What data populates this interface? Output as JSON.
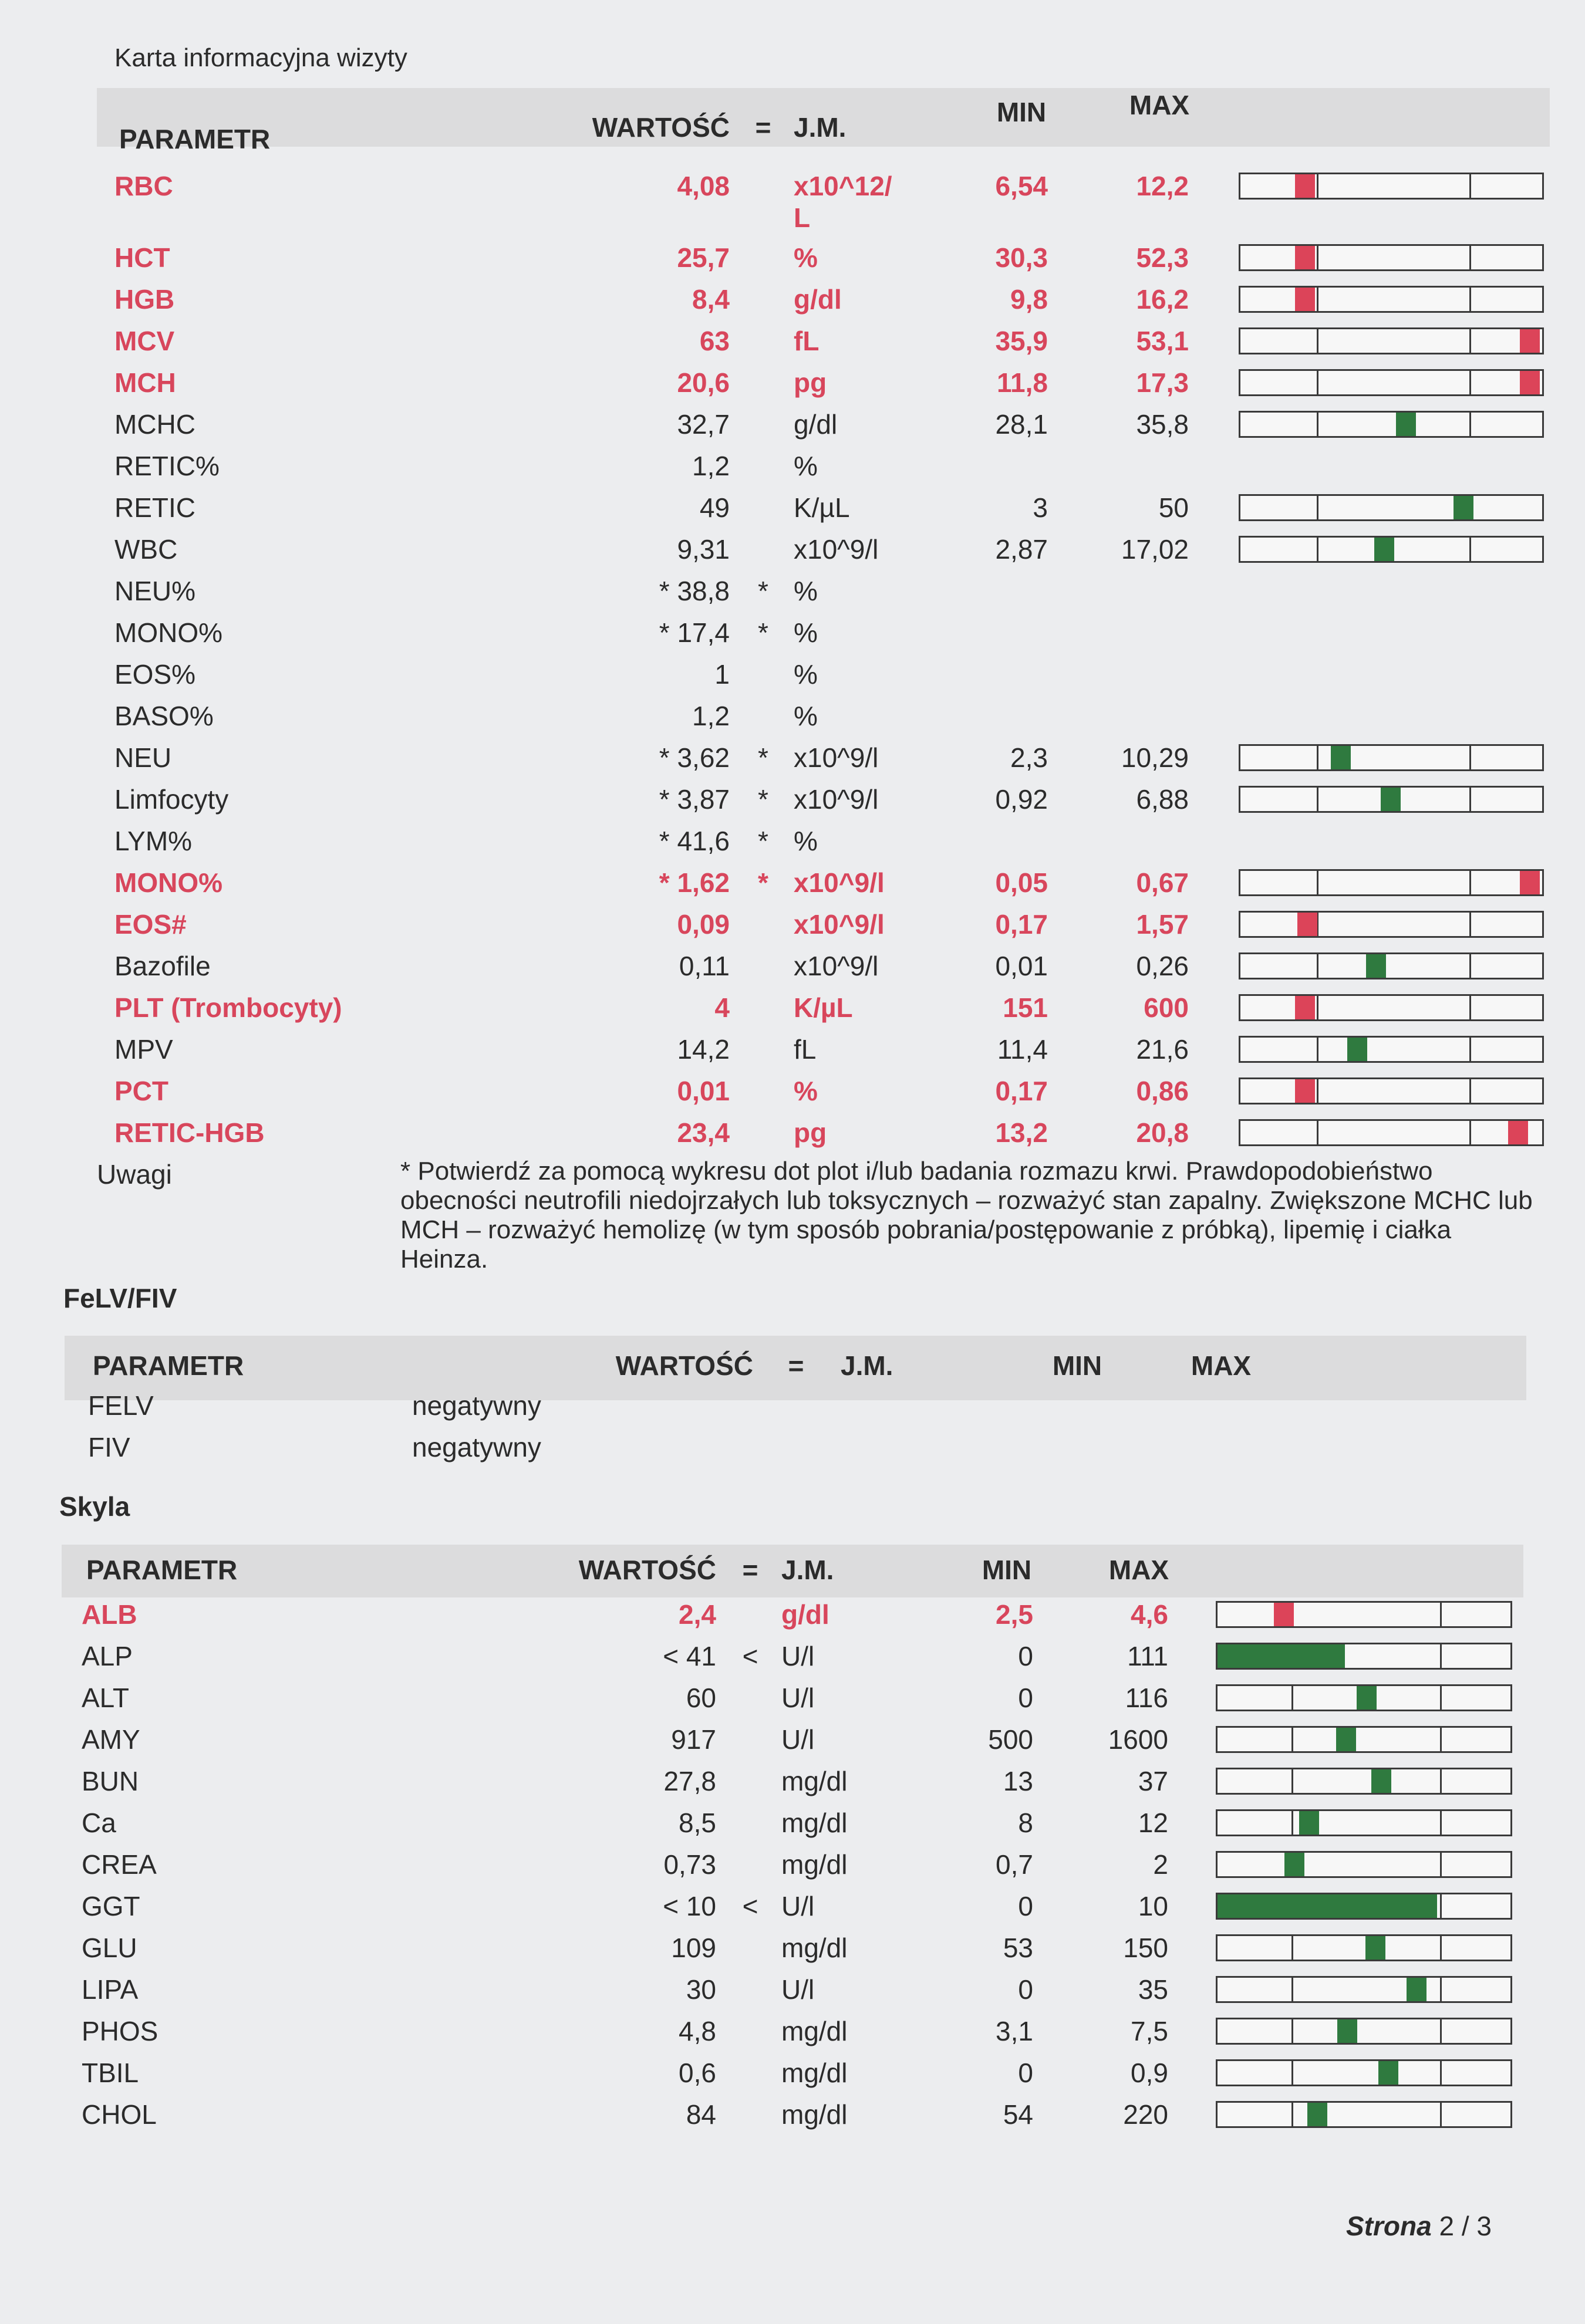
{
  "header": {
    "title": "Karta informacyjna wizyty"
  },
  "sections": [
    {
      "columns": {
        "parameter": "PARAMETR",
        "value": "WARTOŚĆ",
        "op": "=",
        "unit": "J.M.",
        "min": "MIN",
        "max": "MAX"
      },
      "rows": [
        {
          "name": "RBC",
          "value": "4,08",
          "unit": "x10^12/L",
          "min": "6,54",
          "max": "12,2",
          "color": "#d8465c"
        },
        {
          "name": "HCT",
          "value": "25,7",
          "unit": "%",
          "min": "30,3",
          "max": "52,3",
          "color": "#d8465c"
        },
        {
          "name": "HGB",
          "value": "8,4",
          "unit": "g/dl",
          "min": "9,8",
          "max": "16,2",
          "color": "#d8465c"
        },
        {
          "name": "MCV",
          "value": "63",
          "unit": "fL",
          "min": "35,9",
          "max": "53,1",
          "color": "#d8465c"
        },
        {
          "name": "MCH",
          "value": "20,6",
          "unit": "pg",
          "min": "11,8",
          "max": "17,3",
          "color": "#d8465c"
        },
        {
          "name": "MCHC",
          "value": "32,7",
          "unit": "g/dl",
          "min": "28,1",
          "max": "35,8"
        },
        {
          "name": "RETIC%",
          "value": "1,2",
          "unit": "%"
        },
        {
          "name": "RETIC",
          "value": "49",
          "unit": "K/µL",
          "min": "3",
          "max": "50"
        },
        {
          "name": "WBC",
          "value": "9,31",
          "unit": "x10^9/l",
          "min": "2,87",
          "max": "17,02"
        },
        {
          "name": "NEU%",
          "value": "* 38,8",
          "op": "*",
          "unit": "%"
        },
        {
          "name": "MONO%",
          "value": "* 17,4",
          "op": "*",
          "unit": "%"
        },
        {
          "name": "EOS%",
          "value": "1",
          "unit": "%"
        },
        {
          "name": "BASO%",
          "value": "1,2",
          "unit": "%"
        },
        {
          "name": "NEU",
          "value": "* 3,62",
          "op": "*",
          "unit": "x10^9/l",
          "min": "2,3",
          "max": "10,29"
        },
        {
          "name": "Limfocyty",
          "value": "* 3,87",
          "op": "*",
          "unit": "x10^9/l",
          "min": "0,92",
          "max": "6,88"
        },
        {
          "name": "LYM%",
          "value": "* 41,6",
          "op": "*",
          "unit": "%"
        },
        {
          "name": "MONO%",
          "value": "* 1,62",
          "op": "*",
          "unit": "x10^9/l",
          "min": "0,05",
          "max": "0,67",
          "color": "#d8465c"
        },
        {
          "name": "EOS#",
          "value": "0,09",
          "unit": "x10^9/l",
          "min": "0,17",
          "max": "1,57",
          "color": "#d8465c"
        },
        {
          "name": "Bazofile",
          "value": "0,11",
          "unit": "x10^9/l",
          "min": "0,01",
          "max": "0,26"
        },
        {
          "name": "PLT (Trombocyty)",
          "value": "4",
          "unit": "K/µL",
          "min": "151",
          "max": "600",
          "color": "#d8465c"
        },
        {
          "name": "MPV",
          "value": "14,2",
          "unit": "fL",
          "min": "11,4",
          "max": "21,6"
        },
        {
          "name": "PCT",
          "value": "0,01",
          "unit": "%",
          "min": "0,17",
          "max": "0,86",
          "color": "#d8465c"
        },
        {
          "name": "RETIC-HGB",
          "value": "23,4",
          "unit": "pg",
          "min": "13,2",
          "max": "20,8",
          "color": "#d8465c"
        }
      ],
      "remarks": {
        "label": "Uwagi",
        "text": "* Potwierdź za pomocą wykresu dot plot i/lub badania rozmazu krwi. Prawdopodobieństwo obecności neutrofili niedojrzałych lub toksycznych – rozważyć stan zapalny. Zwiększone MCHC lub MCH – rozważyć hemolizę (w tym sposób pobrania/postępowanie z próbką), lipemię i ciałka Heinza."
      }
    },
    {
      "title": "FeLV/FIV",
      "columns": {
        "parameter": "PARAMETR",
        "value": "WARTOŚĆ",
        "op": "=",
        "unit": "J.M.",
        "min": "MIN",
        "max": "MAX"
      },
      "rows": [
        {
          "name": "FELV",
          "value": "negatywny"
        },
        {
          "name": "FIV",
          "value": "negatywny"
        }
      ]
    },
    {
      "title": "Skyla",
      "columns": {
        "parameter": "PARAMETR",
        "value": "WARTOŚĆ",
        "op": "=",
        "unit": "J.M.",
        "min": "MIN",
        "max": "MAX"
      },
      "rows": [
        {
          "name": "ALB",
          "value": "2,4",
          "unit": "g/dl",
          "min": "2,5",
          "max": "4,6",
          "color": "#d8465c"
        },
        {
          "name": "ALP",
          "value": "< 41",
          "op": "<",
          "unit": "U/l",
          "min": "0",
          "max": "111",
          "bar_fill": true
        },
        {
          "name": "ALT",
          "value": "60",
          "unit": "U/l",
          "min": "0",
          "max": "116"
        },
        {
          "name": "AMY",
          "value": "917",
          "unit": "U/l",
          "min": "500",
          "max": "1600"
        },
        {
          "name": "BUN",
          "value": "27,8",
          "unit": "mg/dl",
          "min": "13",
          "max": "37"
        },
        {
          "name": "Ca",
          "value": "8,5",
          "unit": "mg/dl",
          "min": "8",
          "max": "12"
        },
        {
          "name": "CREA",
          "value": "0,73",
          "unit": "mg/dl",
          "min": "0,7",
          "max": "2"
        },
        {
          "name": "GGT",
          "value": "< 10",
          "op": "<",
          "unit": "U/l",
          "min": "0",
          "max": "10",
          "bar_fill": true
        },
        {
          "name": "GLU",
          "value": "109",
          "unit": "mg/dl",
          "min": "53",
          "max": "150"
        },
        {
          "name": "LIPA",
          "value": "30",
          "unit": "U/l",
          "min": "0",
          "max": "35"
        },
        {
          "name": "PHOS",
          "value": "4,8",
          "unit": "mg/dl",
          "min": "3,1",
          "max": "7,5"
        },
        {
          "name": "TBIL",
          "value": "0,6",
          "unit": "mg/dl",
          "min": "0",
          "max": "0,9"
        },
        {
          "name": "CHOL",
          "value": "84",
          "unit": "mg/dl",
          "min": "54",
          "max": "220"
        }
      ]
    }
  ],
  "footer": {
    "label": "Strona",
    "page": "2 / 3"
  }
}
